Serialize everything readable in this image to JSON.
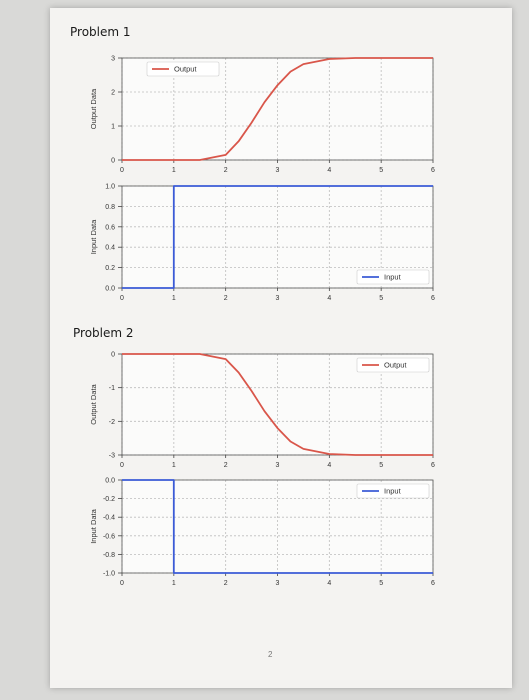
{
  "page": {
    "problems": [
      {
        "title": "Problem 1"
      },
      {
        "title": "Problem 2"
      }
    ],
    "page_number": "2"
  },
  "chart_data": [
    {
      "type": "line",
      "ylabel": "Output Data",
      "xlim": [
        0,
        6
      ],
      "ylim": [
        0,
        3
      ],
      "xticks": [
        "0",
        "1",
        "2",
        "3",
        "4",
        "5",
        "6"
      ],
      "yticks": [
        "0",
        "1",
        "2",
        "3"
      ],
      "grid": true,
      "legend": "top-left",
      "series": [
        {
          "name": "Output",
          "color": "#d9564a",
          "x": [
            0,
            1,
            1.5,
            2,
            2.25,
            2.5,
            2.75,
            3,
            3.25,
            3.5,
            4,
            4.5,
            5,
            5.5,
            6
          ],
          "y": [
            0,
            0,
            0,
            0.15,
            0.55,
            1.1,
            1.7,
            2.2,
            2.6,
            2.82,
            2.97,
            3,
            3,
            3,
            3
          ]
        }
      ]
    },
    {
      "type": "line",
      "ylabel": "Input Data",
      "xlim": [
        0,
        6
      ],
      "ylim": [
        0,
        1
      ],
      "xticks": [
        "0",
        "1",
        "2",
        "3",
        "4",
        "5",
        "6"
      ],
      "yticks": [
        "0.0",
        "0.2",
        "0.4",
        "0.6",
        "0.8",
        "1.0"
      ],
      "grid": true,
      "legend": "bottom-right",
      "series": [
        {
          "name": "Input",
          "color": "#3b5bd6",
          "x": [
            0,
            1,
            1,
            6
          ],
          "y": [
            0,
            0,
            1,
            1
          ]
        }
      ]
    },
    {
      "type": "line",
      "ylabel": "Output Data",
      "xlim": [
        0,
        6
      ],
      "ylim": [
        -3,
        0
      ],
      "xticks": [
        "0",
        "1",
        "2",
        "3",
        "4",
        "5",
        "6"
      ],
      "yticks": [
        "-3",
        "-2",
        "-1",
        "0"
      ],
      "grid": true,
      "legend": "top-right",
      "series": [
        {
          "name": "Output",
          "color": "#d9564a",
          "x": [
            0,
            1,
            1.5,
            2,
            2.25,
            2.5,
            2.75,
            3,
            3.25,
            3.5,
            4,
            4.5,
            5,
            5.5,
            6
          ],
          "y": [
            0,
            0,
            0,
            -0.15,
            -0.55,
            -1.1,
            -1.7,
            -2.2,
            -2.6,
            -2.82,
            -2.97,
            -3,
            -3,
            -3,
            -3
          ]
        }
      ]
    },
    {
      "type": "line",
      "ylabel": "Input Data",
      "xlim": [
        0,
        6
      ],
      "ylim": [
        -1,
        0
      ],
      "xticks": [
        "0",
        "1",
        "2",
        "3",
        "4",
        "5",
        "6"
      ],
      "yticks": [
        "-1.0",
        "-0.8",
        "-0.6",
        "-0.4",
        "-0.2",
        "0.0"
      ],
      "grid": true,
      "legend": "top-right",
      "series": [
        {
          "name": "Input",
          "color": "#3b5bd6",
          "x": [
            0,
            1,
            1,
            6
          ],
          "y": [
            0,
            0,
            -1,
            -1
          ]
        }
      ]
    }
  ]
}
